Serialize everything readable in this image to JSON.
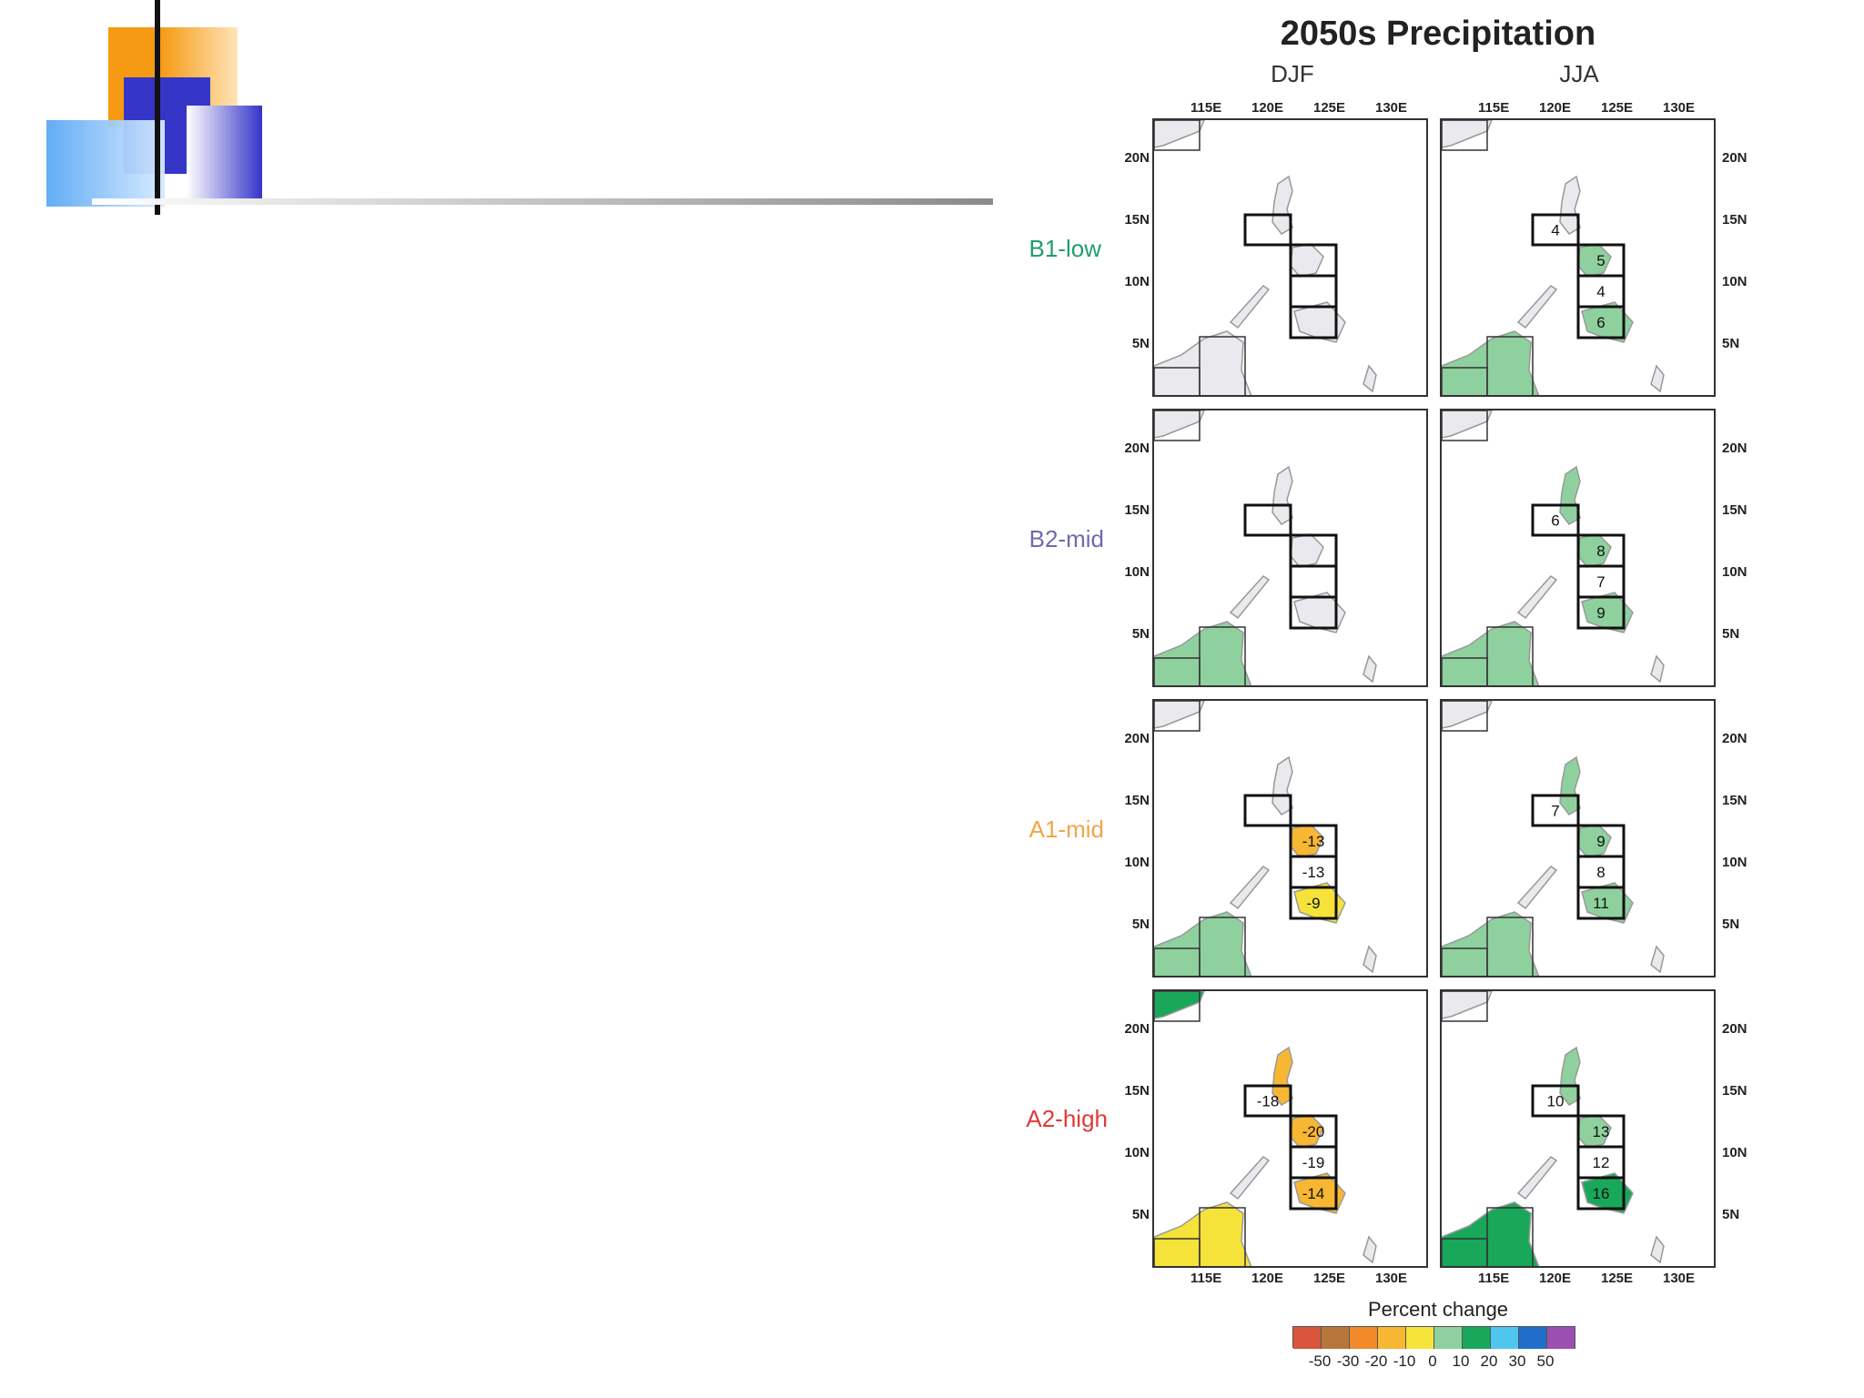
{
  "title": "2050s Precipitation",
  "seasons": [
    "DJF",
    "JJA"
  ],
  "scenarios": [
    {
      "label": "B1-low",
      "color": "#1f9f6a"
    },
    {
      "label": "B2-mid",
      "color": "#6b6bb0"
    },
    {
      "label": "A1-mid",
      "color": "#f2a54a"
    },
    {
      "label": "A2-high",
      "color": "#e03a3a"
    }
  ],
  "lon_ticks": [
    "115E",
    "120E",
    "125E",
    "130E"
  ],
  "lat_ticks": [
    "20N",
    "15N",
    "10N",
    "5N"
  ],
  "colorbar": {
    "title": "Percent change",
    "labels": [
      "-50",
      "-30",
      "-20",
      "-10",
      "0",
      "10",
      "20",
      "30",
      "50"
    ],
    "colors": [
      "#d9553b",
      "#b8773a",
      "#f28a2a",
      "#f7b733",
      "#f5e33a",
      "#8fd19e",
      "#19a85a",
      "#4ec6f0",
      "#1f6fc9",
      "#9b4fb0"
    ]
  },
  "chart_data": {
    "type": "heatmap",
    "title": "2050s Precipitation",
    "columns": [
      "DJF",
      "JJA"
    ],
    "rows": [
      "B1-low",
      "B2-mid",
      "A1-mid",
      "A2-high"
    ],
    "box_values": [
      {
        "scenario": "B1-low",
        "season": "DJF",
        "values": [
          "",
          "",
          "",
          ""
        ]
      },
      {
        "scenario": "B1-low",
        "season": "JJA",
        "values": [
          "4",
          "5",
          "4",
          "6"
        ]
      },
      {
        "scenario": "B2-mid",
        "season": "DJF",
        "values": [
          "",
          "",
          "",
          ""
        ]
      },
      {
        "scenario": "B2-mid",
        "season": "JJA",
        "values": [
          "6",
          "8",
          "7",
          "9"
        ]
      },
      {
        "scenario": "A1-mid",
        "season": "DJF",
        "values": [
          "",
          "-13",
          "-13",
          "-9"
        ]
      },
      {
        "scenario": "A1-mid",
        "season": "JJA",
        "values": [
          "7",
          "9",
          "8",
          "11"
        ]
      },
      {
        "scenario": "A2-high",
        "season": "DJF",
        "values": [
          "-18",
          "-20",
          "-19",
          "-14"
        ]
      },
      {
        "scenario": "A2-high",
        "season": "JJA",
        "values": [
          "10",
          "13",
          "12",
          "16"
        ]
      }
    ],
    "colorbar_label": "Percent change",
    "colorbar_ticks": [
      -50,
      -30,
      -20,
      -10,
      0,
      10,
      20,
      30,
      50
    ]
  }
}
